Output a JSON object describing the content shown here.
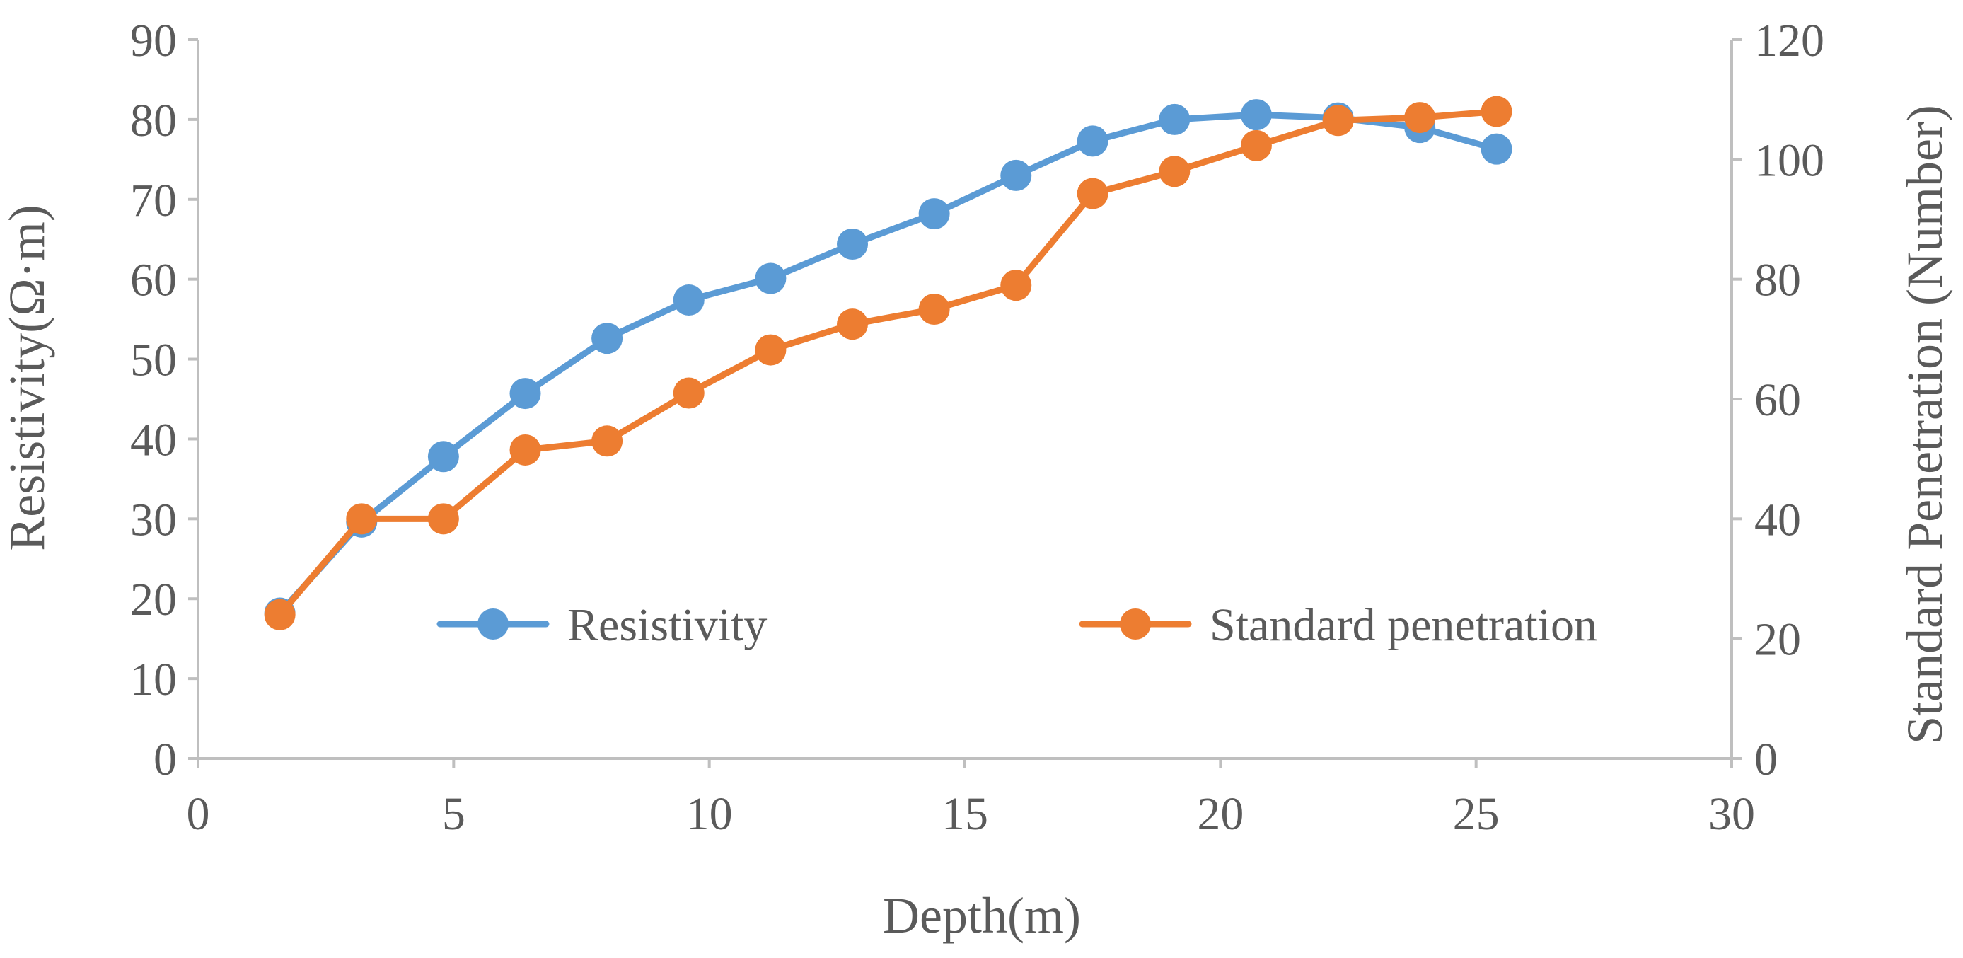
{
  "chart_data": {
    "type": "line",
    "title": "",
    "xlabel": "Depth(m)",
    "ylabel": "Resistivity(Ω·m)",
    "y2label": "Standard Penetration (Number)",
    "xlim": [
      0,
      30
    ],
    "ylim": [
      0,
      90
    ],
    "y2lim": [
      0,
      120
    ],
    "xticks": [
      "0",
      "5",
      "10",
      "15",
      "20",
      "25",
      "30"
    ],
    "yticks": [
      "0",
      "10",
      "20",
      "30",
      "40",
      "50",
      "60",
      "70",
      "80",
      "90"
    ],
    "y2ticks": [
      "0",
      "20",
      "40",
      "60",
      "80",
      "100",
      "120"
    ],
    "grid": false,
    "legend_position": "bottom-center inside",
    "series": [
      {
        "name": "Resistivity",
        "axis": "left",
        "color": "#5b9bd5",
        "x": [
          1.6,
          3.2,
          4.8,
          6.4,
          8.0,
          9.6,
          11.2,
          12.8,
          14.4,
          16.0,
          17.5,
          19.1,
          20.7,
          22.3,
          23.9,
          25.4
        ],
        "values": [
          18.2,
          29.6,
          37.8,
          45.7,
          52.6,
          57.4,
          60.1,
          64.4,
          68.2,
          73.0,
          77.3,
          80.0,
          80.6,
          80.2,
          79.0,
          76.3
        ]
      },
      {
        "name": "Standard penetration",
        "axis": "right",
        "color": "#ed7d31",
        "x": [
          1.6,
          3.2,
          4.8,
          6.4,
          8.0,
          9.6,
          11.2,
          12.8,
          14.4,
          16.0,
          17.5,
          19.1,
          20.7,
          22.3,
          23.9,
          25.4
        ],
        "values": [
          24,
          40,
          40,
          51.5,
          53,
          61,
          68.2,
          72.5,
          75,
          79,
          94.3,
          98,
          102.3,
          106.5,
          107,
          108
        ]
      }
    ]
  }
}
